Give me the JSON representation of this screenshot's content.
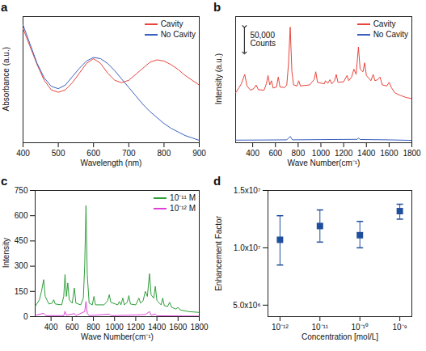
{
  "chart_data": [
    {
      "panel": "a",
      "type": "line",
      "x_label": "Wavelength (nm)",
      "y_label": "Absorbance (a.u.)",
      "xlim": [
        400,
        900
      ],
      "xticks": [
        400,
        500,
        600,
        700,
        800,
        900
      ],
      "ylim": [
        0,
        1.05
      ],
      "tick_labels": "x",
      "legend": "top-right",
      "x": [
        400,
        420,
        440,
        460,
        480,
        500,
        520,
        540,
        560,
        580,
        600,
        620,
        640,
        660,
        680,
        700,
        720,
        740,
        760,
        780,
        800,
        820,
        840,
        860,
        880,
        900
      ],
      "series": [
        {
          "name": "Cavity",
          "color": "#e8453c",
          "values": [
            0.95,
            0.8,
            0.65,
            0.52,
            0.44,
            0.42,
            0.44,
            0.5,
            0.58,
            0.66,
            0.7,
            0.66,
            0.58,
            0.52,
            0.5,
            0.52,
            0.57,
            0.62,
            0.67,
            0.69,
            0.68,
            0.65,
            0.61,
            0.56,
            0.52,
            0.48
          ]
        },
        {
          "name": "No Cavity",
          "color": "#3a5fbf",
          "values": [
            0.98,
            0.82,
            0.66,
            0.54,
            0.47,
            0.45,
            0.48,
            0.55,
            0.62,
            0.68,
            0.71,
            0.7,
            0.66,
            0.6,
            0.53,
            0.46,
            0.39,
            0.32,
            0.26,
            0.21,
            0.16,
            0.12,
            0.09,
            0.06,
            0.04,
            0.02
          ]
        }
      ]
    },
    {
      "panel": "b",
      "type": "line",
      "x_label": "Wave Number(cm⁻¹)",
      "y_label": "Intensity (a.u.)",
      "xlim": [
        250,
        1800
      ],
      "xticks": [
        400,
        600,
        800,
        1000,
        1200,
        1400,
        1600,
        1800
      ],
      "ylim": [
        0,
        240000
      ],
      "tick_labels": "x",
      "legend": "top-right",
      "annotations": [
        {
          "text": [
            "50,000",
            "Counts"
          ],
          "value": 50000
        }
      ],
      "series": [
        {
          "name": "Cavity",
          "color": "#e8453c",
          "x": [
            250,
            280,
            300,
            330,
            350,
            380,
            410,
            430,
            450,
            500,
            520,
            535,
            550,
            565,
            580,
            610,
            625,
            640,
            680,
            700,
            715,
            730,
            745,
            760,
            790,
            805,
            820,
            900,
            940,
            955,
            970,
            1030,
            1040,
            1060,
            1080,
            1095,
            1120,
            1135,
            1150,
            1200,
            1230,
            1245,
            1270,
            1290,
            1310,
            1330,
            1345,
            1370,
            1385,
            1400,
            1440,
            1460,
            1475,
            1500,
            1520,
            1540,
            1580,
            1600,
            1620,
            1650,
            1700,
            1750,
            1800
          ],
          "values": [
            95000,
            105000,
            112000,
            130000,
            108000,
            100000,
            103000,
            110000,
            101000,
            100000,
            112000,
            128000,
            110000,
            118000,
            104000,
            106000,
            125000,
            106000,
            105000,
            110000,
            150000,
            220000,
            135000,
            110000,
            108000,
            118000,
            108000,
            110000,
            120000,
            135000,
            115000,
            112000,
            118000,
            113000,
            120000,
            112000,
            118000,
            130000,
            115000,
            116000,
            128000,
            118000,
            125000,
            140000,
            130000,
            182000,
            140000,
            135000,
            152000,
            128000,
            118000,
            130000,
            118000,
            120000,
            125000,
            110000,
            108000,
            115000,
            105000,
            95000,
            90000,
            86000,
            84000
          ]
        },
        {
          "name": "No Cavity",
          "color": "#3a5fbf",
          "x": [
            250,
            500,
            700,
            730,
            750,
            1000,
            1320,
            1330,
            1345,
            1600,
            1800
          ],
          "values": [
            5000,
            5200,
            5500,
            12000,
            5500,
            6000,
            6500,
            9000,
            6200,
            5500,
            4500
          ]
        }
      ]
    },
    {
      "panel": "c",
      "type": "line",
      "x_label": "Wave Number(cm⁻¹)",
      "y_label": "Intensity",
      "xlim": [
        250,
        1800
      ],
      "xticks": [
        400,
        600,
        800,
        1000,
        1200,
        1400,
        1600,
        1800
      ],
      "ylim": [
        0,
        750
      ],
      "yticks": [
        0,
        150,
        300,
        450,
        600,
        750
      ],
      "legend": "top-right",
      "series": [
        {
          "name": "10⁻¹¹ M",
          "color": "#2e9e3a",
          "x": [
            250,
            290,
            310,
            330,
            345,
            380,
            410,
            425,
            440,
            500,
            520,
            532,
            545,
            558,
            572,
            600,
            620,
            635,
            680,
            705,
            718,
            730,
            742,
            760,
            790,
            805,
            820,
            900,
            935,
            950,
            965,
            1030,
            1045,
            1060,
            1078,
            1092,
            1120,
            1135,
            1150,
            1200,
            1230,
            1245,
            1270,
            1290,
            1310,
            1330,
            1345,
            1370,
            1385,
            1400,
            1440,
            1455,
            1470,
            1500,
            1520,
            1540,
            1580,
            1600,
            1620,
            1700,
            1800
          ],
          "values": [
            60,
            100,
            150,
            220,
            120,
            75,
            80,
            100,
            75,
            70,
            120,
            250,
            120,
            200,
            100,
            80,
            170,
            80,
            70,
            110,
            300,
            660,
            250,
            80,
            70,
            120,
            70,
            70,
            95,
            130,
            85,
            70,
            90,
            70,
            110,
            70,
            85,
            125,
            75,
            70,
            110,
            80,
            95,
            150,
            120,
            255,
            130,
            110,
            180,
            95,
            70,
            110,
            65,
            60,
            85,
            55,
            45,
            55,
            40,
            30,
            25
          ]
        },
        {
          "name": "10⁻¹² M",
          "color": "#e040d8",
          "x": [
            250,
            330,
            350,
            520,
            532,
            545,
            620,
            635,
            718,
            730,
            742,
            760,
            950,
            965,
            1290,
            1330,
            1345,
            1385,
            1400,
            1800
          ],
          "values": [
            8,
            20,
            6,
            6,
            32,
            8,
            18,
            6,
            30,
            90,
            20,
            6,
            15,
            5,
            12,
            30,
            8,
            15,
            5,
            3
          ]
        }
      ]
    },
    {
      "panel": "d",
      "type": "scatter",
      "x_label": "Concentration [mol/L]",
      "y_label": "Enhancement Factor",
      "log": "x",
      "marker": "square",
      "color": "#1f4e9c",
      "xlim": [
        5e-13,
        2e-09
      ],
      "xticks": [
        {
          "value": 1e-12,
          "label": "10⁻¹²"
        },
        {
          "value": 1e-11,
          "label": "10⁻¹¹"
        },
        {
          "value": 1e-10,
          "label": "10⁻¹⁰"
        },
        {
          "value": 1e-09,
          "label": "10⁻⁹"
        }
      ],
      "ylim": [
        4000000,
        15000000
      ],
      "yticks": [
        {
          "value": 5000000,
          "label": "5.0x10⁶"
        },
        {
          "value": 10000000,
          "label": "1.0x10⁷"
        },
        {
          "value": 15000000,
          "label": "1.5x10⁷"
        }
      ],
      "x": [
        1e-12,
        1e-11,
        1e-10,
        1e-09
      ],
      "values": [
        10700000,
        11900000,
        11100000,
        13200000
      ],
      "error_low": [
        8500000,
        10500000,
        10000000,
        12500000
      ],
      "error_high": [
        12800000,
        13300000,
        12300000,
        13800000
      ]
    }
  ]
}
